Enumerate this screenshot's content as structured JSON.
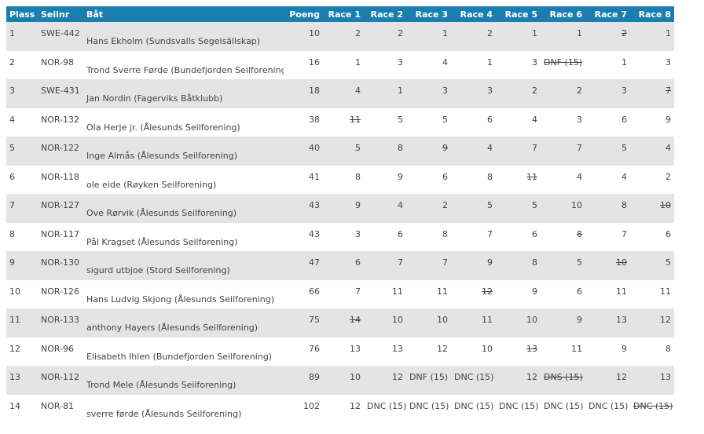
{
  "columns": {
    "place": "Plass",
    "sail": "Seilnr",
    "boat": "Båt",
    "points": "Poeng",
    "races": [
      "Race 1",
      "Race 2",
      "Race 3",
      "Race 4",
      "Race 5",
      "Race 6",
      "Race 7",
      "Race 8"
    ]
  },
  "rows": [
    {
      "place": "1",
      "sail": "SWE-442",
      "boat": "Hans Ekholm (Sundsvalls Segelsällskap)",
      "points": "10",
      "races": [
        {
          "v": "2",
          "d": false
        },
        {
          "v": "2",
          "d": false
        },
        {
          "v": "1",
          "d": false
        },
        {
          "v": "2",
          "d": false
        },
        {
          "v": "1",
          "d": false
        },
        {
          "v": "1",
          "d": false
        },
        {
          "v": "2",
          "d": true
        },
        {
          "v": "1",
          "d": false
        }
      ]
    },
    {
      "place": "2",
      "sail": "NOR-98",
      "boat": "Trond Sverre Førde (Bundefjorden Seilforening)",
      "points": "16",
      "races": [
        {
          "v": "1",
          "d": false
        },
        {
          "v": "3",
          "d": false
        },
        {
          "v": "4",
          "d": false
        },
        {
          "v": "1",
          "d": false
        },
        {
          "v": "3",
          "d": false
        },
        {
          "v": "DNF (15)",
          "d": true
        },
        {
          "v": "1",
          "d": false
        },
        {
          "v": "3",
          "d": false
        }
      ]
    },
    {
      "place": "3",
      "sail": "SWE-431",
      "boat": "Jan Nordin (Fagerviks Båtklubb)",
      "points": "18",
      "races": [
        {
          "v": "4",
          "d": false
        },
        {
          "v": "1",
          "d": false
        },
        {
          "v": "3",
          "d": false
        },
        {
          "v": "3",
          "d": false
        },
        {
          "v": "2",
          "d": false
        },
        {
          "v": "2",
          "d": false
        },
        {
          "v": "3",
          "d": false
        },
        {
          "v": "7",
          "d": true
        }
      ]
    },
    {
      "place": "4",
      "sail": "NOR-132",
      "boat": "Ola Herje jr. (Ålesunds Seilforening)",
      "points": "38",
      "races": [
        {
          "v": "11",
          "d": true
        },
        {
          "v": "5",
          "d": false
        },
        {
          "v": "5",
          "d": false
        },
        {
          "v": "6",
          "d": false
        },
        {
          "v": "4",
          "d": false
        },
        {
          "v": "3",
          "d": false
        },
        {
          "v": "6",
          "d": false
        },
        {
          "v": "9",
          "d": false
        }
      ]
    },
    {
      "place": "5",
      "sail": "NOR-122",
      "boat": "Inge Almås (Ålesunds Seilforening)",
      "points": "40",
      "races": [
        {
          "v": "5",
          "d": false
        },
        {
          "v": "8",
          "d": false
        },
        {
          "v": "9",
          "d": true
        },
        {
          "v": "4",
          "d": false
        },
        {
          "v": "7",
          "d": false
        },
        {
          "v": "7",
          "d": false
        },
        {
          "v": "5",
          "d": false
        },
        {
          "v": "4",
          "d": false
        }
      ]
    },
    {
      "place": "6",
      "sail": "NOR-118",
      "boat": "ole eide (Røyken Seilforening)",
      "points": "41",
      "races": [
        {
          "v": "8",
          "d": false
        },
        {
          "v": "9",
          "d": false
        },
        {
          "v": "6",
          "d": false
        },
        {
          "v": "8",
          "d": false
        },
        {
          "v": "11",
          "d": true
        },
        {
          "v": "4",
          "d": false
        },
        {
          "v": "4",
          "d": false
        },
        {
          "v": "2",
          "d": false
        }
      ]
    },
    {
      "place": "7",
      "sail": "NOR-127",
      "boat": "Ove Rørvik (Ålesunds Seilforening)",
      "points": "43",
      "races": [
        {
          "v": "9",
          "d": false
        },
        {
          "v": "4",
          "d": false
        },
        {
          "v": "2",
          "d": false
        },
        {
          "v": "5",
          "d": false
        },
        {
          "v": "5",
          "d": false
        },
        {
          "v": "10",
          "d": false
        },
        {
          "v": "8",
          "d": false
        },
        {
          "v": "10",
          "d": true
        }
      ]
    },
    {
      "place": "8",
      "sail": "NOR-117",
      "boat": "Pål Kragset (Ålesunds Seilforening)",
      "points": "43",
      "races": [
        {
          "v": "3",
          "d": false
        },
        {
          "v": "6",
          "d": false
        },
        {
          "v": "8",
          "d": false
        },
        {
          "v": "7",
          "d": false
        },
        {
          "v": "6",
          "d": false
        },
        {
          "v": "8",
          "d": true
        },
        {
          "v": "7",
          "d": false
        },
        {
          "v": "6",
          "d": false
        }
      ]
    },
    {
      "place": "9",
      "sail": "NOR-130",
      "boat": "sigurd utbjoe (Stord Seilforening)",
      "points": "47",
      "races": [
        {
          "v": "6",
          "d": false
        },
        {
          "v": "7",
          "d": false
        },
        {
          "v": "7",
          "d": false
        },
        {
          "v": "9",
          "d": false
        },
        {
          "v": "8",
          "d": false
        },
        {
          "v": "5",
          "d": false
        },
        {
          "v": "10",
          "d": true
        },
        {
          "v": "5",
          "d": false
        }
      ]
    },
    {
      "place": "10",
      "sail": "NOR-126",
      "boat": "Hans Ludvig Skjong (Ålesunds Seilforening)",
      "points": "66",
      "races": [
        {
          "v": "7",
          "d": false
        },
        {
          "v": "11",
          "d": false
        },
        {
          "v": "11",
          "d": false
        },
        {
          "v": "12",
          "d": true
        },
        {
          "v": "9",
          "d": false
        },
        {
          "v": "6",
          "d": false
        },
        {
          "v": "11",
          "d": false
        },
        {
          "v": "11",
          "d": false
        }
      ]
    },
    {
      "place": "11",
      "sail": "NOR-133",
      "boat": "anthony Hayers (Ålesunds Seilforening)",
      "points": "75",
      "races": [
        {
          "v": "14",
          "d": true
        },
        {
          "v": "10",
          "d": false
        },
        {
          "v": "10",
          "d": false
        },
        {
          "v": "11",
          "d": false
        },
        {
          "v": "10",
          "d": false
        },
        {
          "v": "9",
          "d": false
        },
        {
          "v": "13",
          "d": false
        },
        {
          "v": "12",
          "d": false
        }
      ]
    },
    {
      "place": "12",
      "sail": "NOR-96",
      "boat": "Elisabeth Ihlen (Bundefjorden Seilforening)",
      "points": "76",
      "races": [
        {
          "v": "13",
          "d": false
        },
        {
          "v": "13",
          "d": false
        },
        {
          "v": "12",
          "d": false
        },
        {
          "v": "10",
          "d": false
        },
        {
          "v": "13",
          "d": true
        },
        {
          "v": "11",
          "d": false
        },
        {
          "v": "9",
          "d": false
        },
        {
          "v": "8",
          "d": false
        }
      ]
    },
    {
      "place": "13",
      "sail": "NOR-112",
      "boat": "Trond Mele (Ålesunds Seilforening)",
      "points": "89",
      "races": [
        {
          "v": "10",
          "d": false
        },
        {
          "v": "12",
          "d": false
        },
        {
          "v": "DNF (15)",
          "d": false
        },
        {
          "v": "DNC (15)",
          "d": false
        },
        {
          "v": "12",
          "d": false
        },
        {
          "v": "DNS (15)",
          "d": true
        },
        {
          "v": "12",
          "d": false
        },
        {
          "v": "13",
          "d": false
        }
      ]
    },
    {
      "place": "14",
      "sail": "NOR-81",
      "boat": "sverre førde (Ålesunds Seilforening)",
      "points": "102",
      "races": [
        {
          "v": "12",
          "d": false
        },
        {
          "v": "DNC (15)",
          "d": false
        },
        {
          "v": "DNC (15)",
          "d": false
        },
        {
          "v": "DNC (15)",
          "d": false
        },
        {
          "v": "DNC (15)",
          "d": false
        },
        {
          "v": "DNC (15)",
          "d": false
        },
        {
          "v": "DNC (15)",
          "d": false
        },
        {
          "v": "DNC (15)",
          "d": true
        }
      ]
    }
  ]
}
